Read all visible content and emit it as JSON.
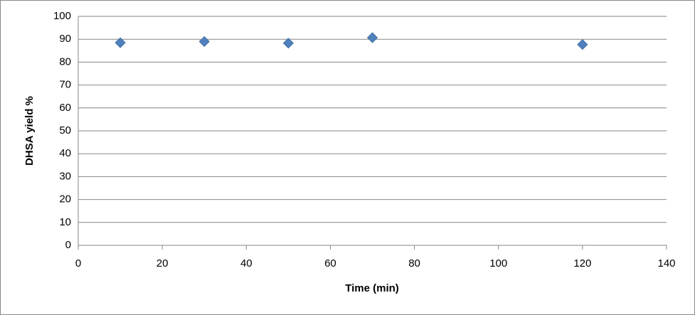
{
  "chart_data": {
    "type": "scatter",
    "x_label": "Time (min)",
    "y_label": "DHSA yield %",
    "x": [
      10,
      30,
      50,
      70,
      120
    ],
    "values": [
      88.5,
      89,
      88.3,
      90.7,
      87.7
    ],
    "color": "#4f81bd",
    "xlim": [
      0,
      140
    ],
    "xticks": [
      0,
      20,
      40,
      60,
      80,
      100,
      120,
      140
    ],
    "ylim": [
      0,
      100
    ],
    "yticks": [
      0,
      10,
      20,
      30,
      40,
      50,
      60,
      70,
      80,
      90,
      100
    ],
    "grid": true
  }
}
